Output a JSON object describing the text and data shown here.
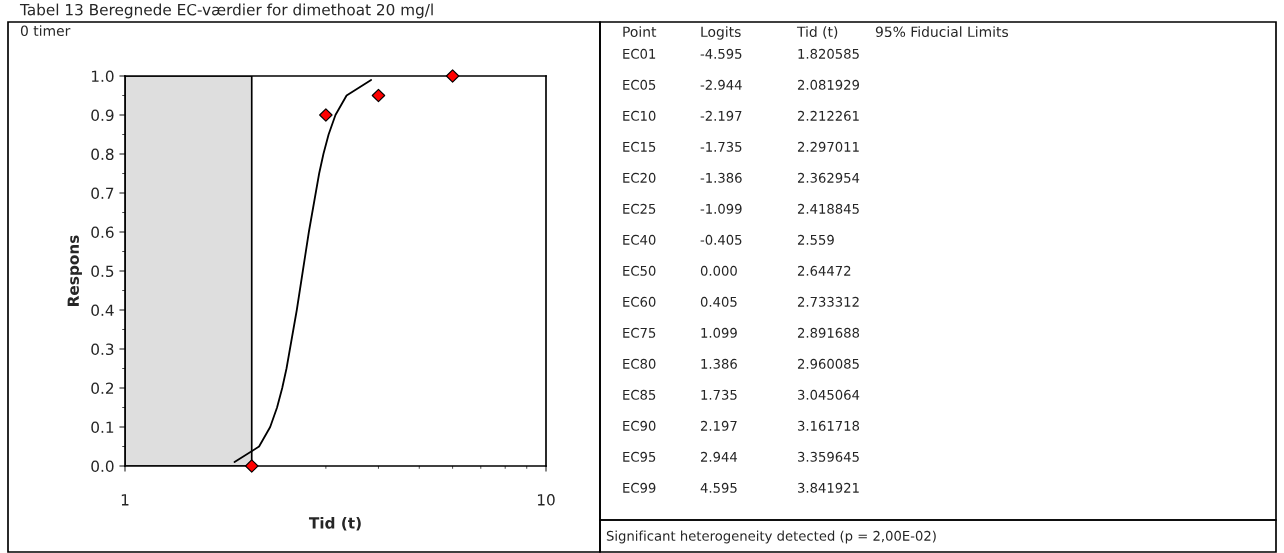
{
  "chart_data": [
    {
      "type": "scatter",
      "title": "Tabel 13 Beregnede EC-værdier for dimethoat 20 mg/l",
      "subtitle": "0 timer",
      "xlabel": "Tid (t)",
      "ylabel": "Respons",
      "log": "x",
      "series": [
        {
          "type": "scatter",
          "color": "#ff0000",
          "marker": "diamond",
          "x": [
            2,
            3,
            4,
            6
          ],
          "values": [
            0.0,
            0.9,
            0.95,
            1.0
          ]
        },
        {
          "type": "line",
          "color": "#000000",
          "marker": "none",
          "line_style": "solid",
          "x": [
            1.820585,
            2.081929,
            2.212261,
            2.297011,
            2.362954,
            2.418845,
            2.559,
            2.64472,
            2.733312,
            2.891688,
            2.960085,
            3.045064,
            3.161718,
            3.359645,
            3.841921
          ],
          "values": [
            0.01,
            0.05,
            0.1,
            0.15,
            0.2,
            0.25,
            0.4,
            0.5,
            0.6,
            0.75,
            0.8,
            0.85,
            0.9,
            0.95,
            0.99
          ]
        }
      ],
      "bands": [
        {
          "axis": "x",
          "from": 1,
          "to": 2,
          "color": "#dedede"
        }
      ],
      "xlim": [
        1,
        10
      ],
      "xticks": [
        1,
        10
      ],
      "ylim": [
        0,
        1
      ],
      "yticks": [
        {
          "value": 0,
          "label": "0.0"
        },
        0.1,
        0.2,
        0.3,
        0.4,
        0.5,
        0.6,
        0.7,
        0.8,
        0.9,
        {
          "value": 1,
          "label": "1.0"
        }
      ],
      "grid": false,
      "legend": false
    },
    {
      "type": "other",
      "categories": [
        "Point",
        "Logits",
        "Tid (t)",
        "95% Fiducial Limits"
      ],
      "y_categories": [
        "EC01",
        "EC05",
        "EC10",
        "EC15",
        "EC20",
        "EC25",
        "EC40",
        "EC50",
        "EC60",
        "EC75",
        "EC80",
        "EC85",
        "EC90",
        "EC95",
        "EC99"
      ],
      "cell_labels": [
        [
          "-4.595",
          "1.820585"
        ],
        [
          "-2.944",
          "2.081929"
        ],
        [
          "-2.197",
          "2.212261"
        ],
        [
          "-1.735",
          "2.297011"
        ],
        [
          "-1.386",
          "2.362954"
        ],
        [
          "-1.099",
          "2.418845"
        ],
        [
          "-0.405",
          "2.559"
        ],
        [
          "0.000",
          "2.64472"
        ],
        [
          "0.405",
          "2.733312"
        ],
        [
          "1.099",
          "2.891688"
        ],
        [
          "1.386",
          "2.960085"
        ],
        [
          "1.735",
          "3.045064"
        ],
        [
          "2.197",
          "3.161718"
        ],
        [
          "2.944",
          "3.359645"
        ],
        [
          "4.595",
          "3.841921"
        ]
      ],
      "annotations": [
        "Significant heterogeneity detected (p = 2,00E-02)"
      ]
    }
  ]
}
